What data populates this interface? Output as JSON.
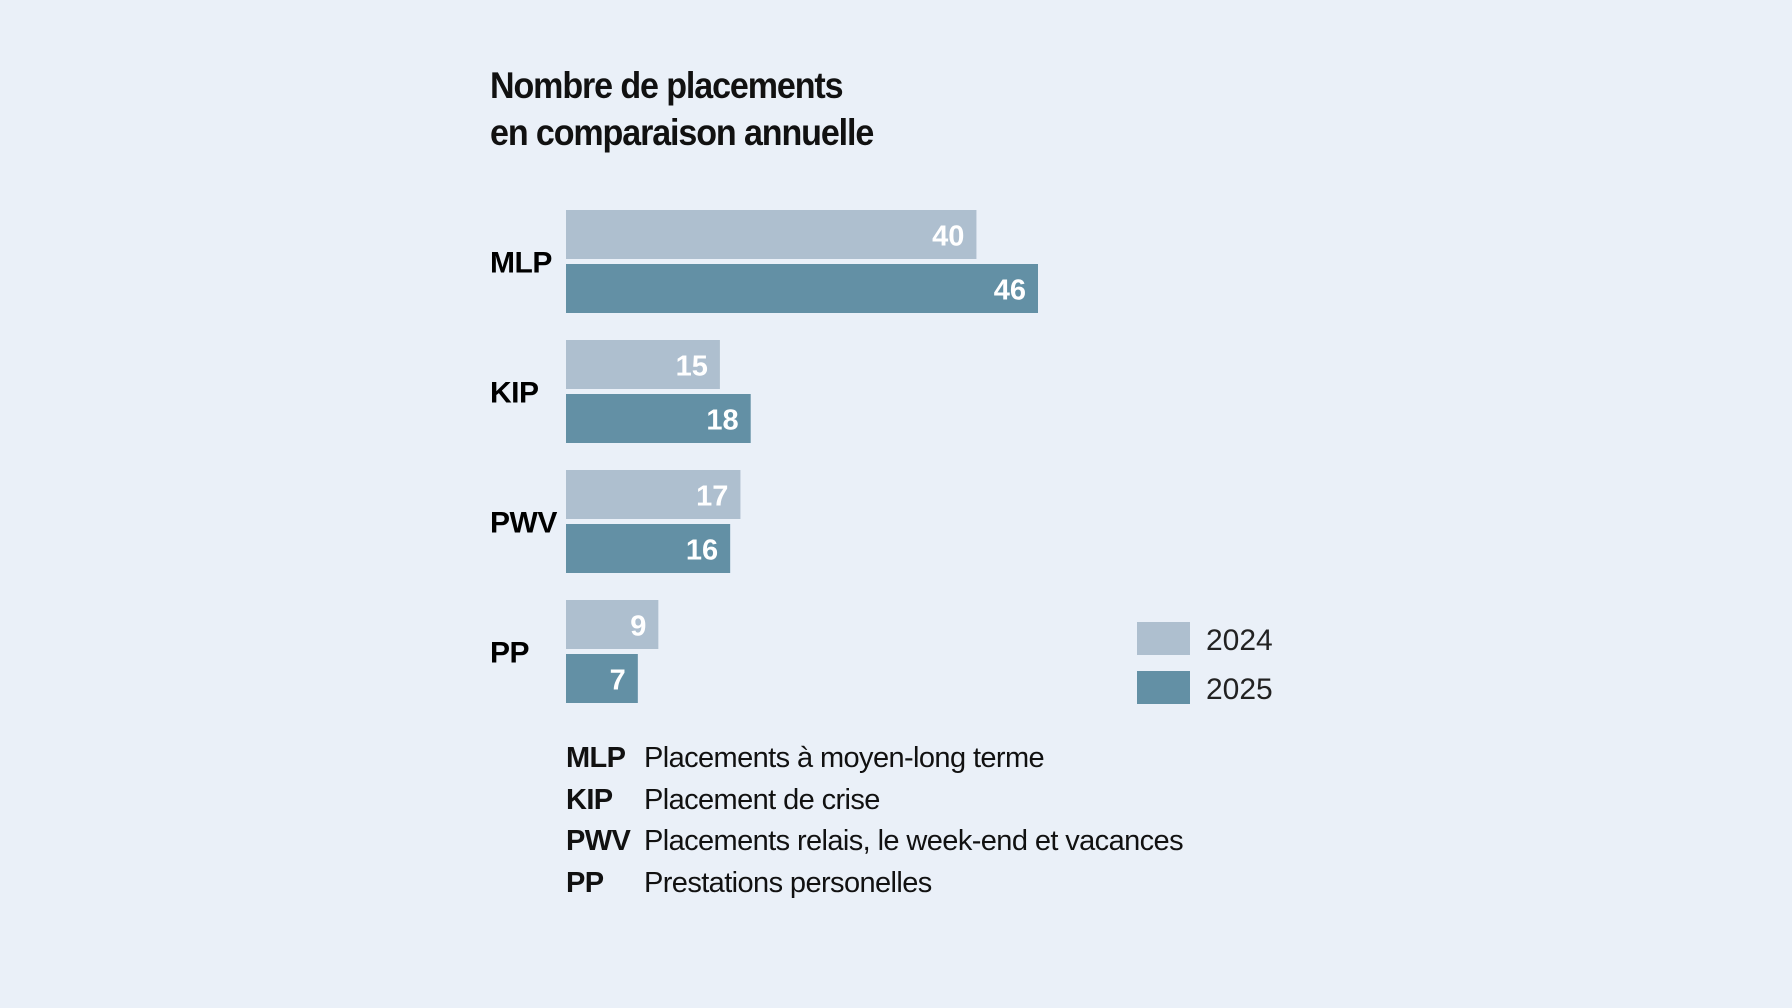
{
  "chart_data": {
    "type": "bar",
    "orientation": "horizontal",
    "title": [
      "Nombre de placements",
      "en comparaison annuelle"
    ],
    "categories": [
      "MLP",
      "KIP",
      "PWV",
      "PP"
    ],
    "series": [
      {
        "name": "2024",
        "values": [
          40,
          15,
          17,
          9
        ],
        "color": "#aebfcf"
      },
      {
        "name": "2025",
        "values": [
          46,
          18,
          16,
          7
        ],
        "color": "#6390a5"
      }
    ],
    "data_labels": true,
    "grid": false,
    "legend_position": "bottom-right",
    "xlim": [
      0,
      46
    ]
  },
  "glossary": [
    {
      "abbr": "MLP",
      "text": "Placements à moyen-long terme"
    },
    {
      "abbr": "KIP",
      "text": "Placement de crise"
    },
    {
      "abbr": "PWV",
      "text": "Placements relais, le week-end et vacances"
    },
    {
      "abbr": "PP",
      "text": "Prestations personelles"
    }
  ],
  "background": "#eaf0f8"
}
